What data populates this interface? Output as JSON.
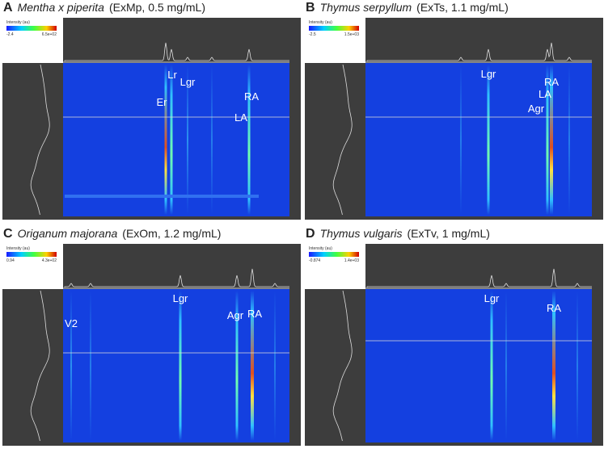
{
  "panels": [
    {
      "letter": "A",
      "species": "Mentha x piperita",
      "extract": "(ExMp, 0.5 mg/mL)",
      "colorbar_title": "Intensity (au)",
      "colorbar_min": "-2.4",
      "colorbar_max": "6.5e+02",
      "peaks": [
        "Er",
        "Lr",
        "Lgr",
        "RA",
        "LA"
      ]
    },
    {
      "letter": "B",
      "species": "Thymus serpyllum",
      "extract": "(ExTs, 1.1 mg/mL)",
      "colorbar_title": "Intensity (au)",
      "colorbar_min": "-2.5",
      "colorbar_max": "1.5e+03",
      "peaks": [
        "Lgr",
        "RA",
        "LA",
        "Agr"
      ]
    },
    {
      "letter": "C",
      "species": "Origanum majorana",
      "extract": "(ExOm, 1.2 mg/mL)",
      "colorbar_title": "Intensity (au)",
      "colorbar_min": "0.94",
      "colorbar_max": "4.3e+02",
      "peaks": [
        "V2",
        "Lgr",
        "Agr",
        "RA"
      ]
    },
    {
      "letter": "D",
      "species": "Thymus vulgaris",
      "extract": "(ExTv, 1 mg/mL)",
      "colorbar_title": "Intensity (au)",
      "colorbar_min": "-0.874",
      "colorbar_max": "1.4e+03",
      "peaks": [
        "Lgr",
        "RA"
      ]
    }
  ]
}
